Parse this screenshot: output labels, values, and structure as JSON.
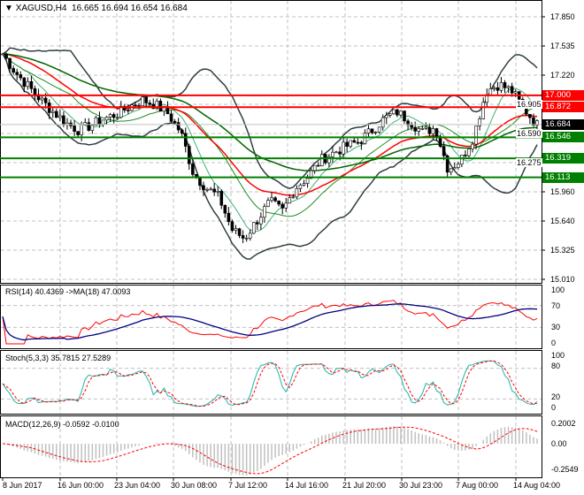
{
  "header": {
    "symbol": "XAGUSD,H4",
    "open": "16.665",
    "high": "16.694",
    "low": "16.654",
    "close": "16.684"
  },
  "price_axis": [
    "17.850",
    "17.535",
    "17.220",
    "16.905",
    "16.590",
    "16.275",
    "15.960",
    "15.640",
    "15.325",
    "15.010"
  ],
  "levels": [
    {
      "value": "17.000",
      "color": "#ff0000"
    },
    {
      "value": "16.872",
      "color": "#ff0000"
    },
    {
      "value": "16.546",
      "color": "#008000"
    },
    {
      "value": "16.319",
      "color": "#008000"
    },
    {
      "value": "16.113",
      "color": "#008000"
    }
  ],
  "current_price": {
    "value": "16.684",
    "color": "#000000"
  },
  "rsi": {
    "label": "RSI(14) 40.4369  ->MA(18) 47.0093",
    "axis": [
      "100",
      "70",
      "30",
      "0"
    ]
  },
  "stoch": {
    "label": "Stoch(5,3,3) 35.7815 27.5289",
    "axis": [
      "100",
      "80",
      "20",
      "0"
    ]
  },
  "macd": {
    "label": "MACD(12,26,9) -0.0592 -0.0100",
    "axis": [
      "0.2002",
      "0.00",
      "-0.2549"
    ]
  },
  "time_axis": [
    "8 Jun 2017",
    "16 Jun 00:00",
    "23 Jun 04:00",
    "30 Jun 08:00",
    "7 Jul 12:00",
    "14 Jul 16:00",
    "21 Jul 20:00",
    "30 Jul 23:00",
    "7 Aug 00:00",
    "14 Aug 04:00"
  ],
  "chart_data": {
    "type": "candlestick",
    "symbol": "XAGUSD",
    "timeframe": "H4",
    "closes_keypoints": [
      17.45,
      17.25,
      17.1,
      16.95,
      16.82,
      16.7,
      16.62,
      16.68,
      16.75,
      16.8,
      16.88,
      16.95,
      16.9,
      16.8,
      16.6,
      16.15,
      16.0,
      15.9,
      15.55,
      15.45,
      15.65,
      15.85,
      15.75,
      16.0,
      16.12,
      16.3,
      16.38,
      16.45,
      16.5,
      16.62,
      16.75,
      16.82,
      16.72,
      16.6,
      16.65,
      16.2,
      16.3,
      16.55,
      17.05,
      17.12,
      17.05,
      16.85,
      16.68
    ],
    "ylim": [
      15.01,
      17.85
    ],
    "colors": {
      "bands": "#2f3f3f",
      "ma_fast": "#ff0000",
      "ma_slow": "#006400",
      "rsi": "#ff0000",
      "rsi_ma": "#000080",
      "stoch_main": "#20b2aa",
      "stoch_signal": "#ff0000",
      "macd_hist": "#c0c0c0",
      "macd_signal": "#ff0000"
    }
  }
}
